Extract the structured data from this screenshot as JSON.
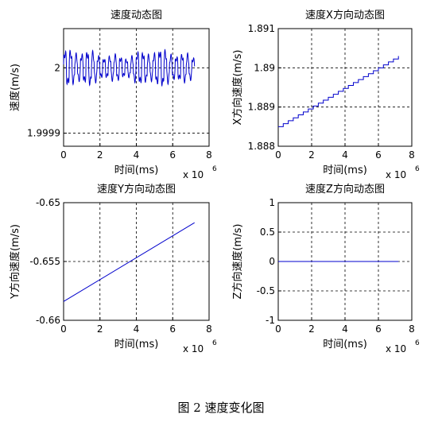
{
  "figure_caption": "图 2 速度变化图",
  "chart_data": [
    {
      "type": "line",
      "title": "速度动态图",
      "xlabel": "时间(ms)",
      "ylabel": "速度(m/s)",
      "x_multiplier": "x 10",
      "x_multiplier_exp": "6",
      "xlim": [
        0,
        8
      ],
      "ylim": [
        1.99988,
        2.00006
      ],
      "xticks": [
        0,
        2,
        4,
        6,
        8
      ],
      "xtick_labels": [
        "0",
        "2",
        "4",
        "6",
        "8"
      ],
      "yticks": [
        1.9999,
        2.0
      ],
      "ytick_labels": [
        "1.9999",
        "2"
      ],
      "grid": true,
      "series": [
        {
          "color": "#0000cc",
          "pattern": "oscillating",
          "x_range": [
            0,
            7.2
          ],
          "y_center": 2.0,
          "y_amplitude": 3e-05
        }
      ]
    },
    {
      "type": "line",
      "title": "速度X方向动态图",
      "xlabel": "时间(ms)",
      "ylabel": "X方向速度(m/s)",
      "x_multiplier": "x 10",
      "x_multiplier_exp": "6",
      "xlim": [
        0,
        8
      ],
      "ylim": [
        1.888,
        1.891
      ],
      "xticks": [
        0,
        2,
        4,
        6,
        8
      ],
      "xtick_labels": [
        "0",
        "2",
        "4",
        "6",
        "8"
      ],
      "yticks": [
        1.888,
        1.889,
        1.89,
        1.891
      ],
      "ytick_labels": [
        "1.888",
        "1.889",
        "1.89",
        "1.891"
      ],
      "grid": true,
      "series": [
        {
          "color": "#0000cc",
          "pattern": "staircase",
          "x": [
            0,
            7.2
          ],
          "y": [
            1.8885,
            1.8903
          ]
        }
      ]
    },
    {
      "type": "line",
      "title": "速度Y方向动态图",
      "xlabel": "时间(ms)",
      "ylabel": "Y方向速度(m/s)",
      "x_multiplier": "x 10",
      "x_multiplier_exp": "6",
      "xlim": [
        0,
        8
      ],
      "ylim": [
        -0.66,
        -0.65
      ],
      "xticks": [
        0,
        2,
        4,
        6,
        8
      ],
      "xtick_labels": [
        "0",
        "2",
        "4",
        "6",
        "8"
      ],
      "yticks": [
        -0.66,
        -0.655,
        -0.65
      ],
      "ytick_labels": [
        "-0.66",
        "-0.655",
        "-0.65"
      ],
      "grid": true,
      "series": [
        {
          "color": "#0000cc",
          "pattern": "linear",
          "x": [
            0,
            7.2
          ],
          "y": [
            -0.6584,
            -0.6517
          ]
        }
      ]
    },
    {
      "type": "line",
      "title": "速度Z方向动态图",
      "xlabel": "时间(ms)",
      "ylabel": "Z方向速度(m/s)",
      "x_multiplier": "x 10",
      "x_multiplier_exp": "6",
      "xlim": [
        0,
        8
      ],
      "ylim": [
        -1,
        1
      ],
      "xticks": [
        0,
        2,
        4,
        6,
        8
      ],
      "xtick_labels": [
        "0",
        "2",
        "4",
        "6",
        "8"
      ],
      "yticks": [
        -1,
        -0.5,
        0,
        0.5,
        1
      ],
      "ytick_labels": [
        "-1",
        "-0.5",
        "0",
        "0.5",
        "1"
      ],
      "grid": true,
      "series": [
        {
          "color": "#0000cc",
          "pattern": "linear",
          "x": [
            0,
            7.2
          ],
          "y": [
            0,
            0
          ]
        }
      ]
    }
  ]
}
